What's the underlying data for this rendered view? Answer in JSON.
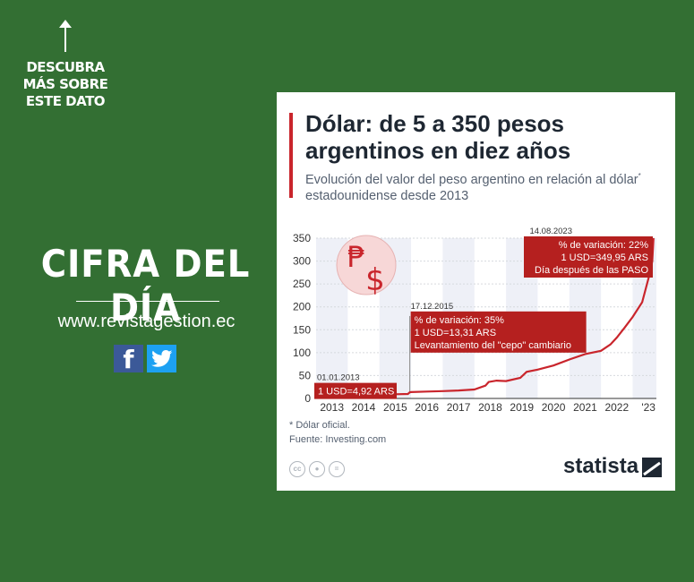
{
  "promo": {
    "text": "DESCUBRA MÁS SOBRE ESTE DATO"
  },
  "headline": "CIFRA DEL DÍA",
  "website": "www.revistagestion.ec",
  "social": {
    "facebook_glyph": "f"
  },
  "infographic": {
    "title": "Dólar: de 5 a 350 pesos argentinos en diez años",
    "subtitle_pre": "Evolución del valor del peso argentino en relación al dólar",
    "subtitle_mark": "*",
    "subtitle_post": " estadounidense desde 2013",
    "note": "* Dólar oficial.",
    "source": "Fuente: Investing.com",
    "cc_icons": [
      "cc-icon",
      "by-icon",
      "nd-icon"
    ],
    "cc_glyphs": [
      "cc",
      "",
      "="
    ],
    "brand": "statista",
    "accent_color": "#c9252c"
  },
  "chart_data": {
    "type": "line",
    "title": "Dólar: de 5 a 350 pesos argentinos en diez años",
    "xlabel": "",
    "ylabel": "",
    "xlim": [
      2013.0,
      2023.75
    ],
    "ylim": [
      0,
      350
    ],
    "yticks": [
      0,
      50,
      100,
      150,
      200,
      250,
      300,
      350
    ],
    "xtick_labels": [
      "2013",
      "2014",
      "2015",
      "2016",
      "2017",
      "2018",
      "2019",
      "2020",
      "2021",
      "2022",
      "'23"
    ],
    "grid": true,
    "line_color": "#c9252c",
    "series": [
      {
        "x": [
          2013.0,
          2013.5,
          2014.0,
          2014.1,
          2014.5,
          2015.0,
          2015.5,
          2015.9,
          2015.96,
          2016.0,
          2016.5,
          2017.0,
          2017.5,
          2018.0,
          2018.35,
          2018.45,
          2018.7,
          2019.0,
          2019.45,
          2019.65,
          2020.0,
          2020.5,
          2021.0,
          2021.5,
          2022.0,
          2022.3,
          2022.5,
          2022.75,
          2023.0,
          2023.3,
          2023.55,
          2023.62,
          2023.66
        ],
        "y": [
          4.92,
          5.4,
          6.5,
          8.0,
          8.3,
          8.6,
          9.2,
          9.8,
          13.31,
          13.8,
          15.0,
          16.0,
          17.5,
          19.5,
          28,
          36,
          39,
          38,
          45,
          58,
          63,
          72,
          85,
          97,
          104,
          118,
          133,
          155,
          178,
          210,
          275,
          300,
          349.95
        ]
      }
    ],
    "annotations": [
      {
        "date": "01.01.2013",
        "lines": [
          "1 USD=4,92 ARS"
        ]
      },
      {
        "date": "17.12.2015",
        "lines": [
          "% de variación: 35%",
          "1 USD=13,31 ARS",
          "Levantamiento del \"cepo\" cambiario"
        ]
      },
      {
        "date": "14.08.2023",
        "lines": [
          "% de variación: 22%",
          "1 USD=349,95 ARS",
          "Día después de las PASO"
        ]
      }
    ],
    "icon": "peso-dollar-icon"
  }
}
